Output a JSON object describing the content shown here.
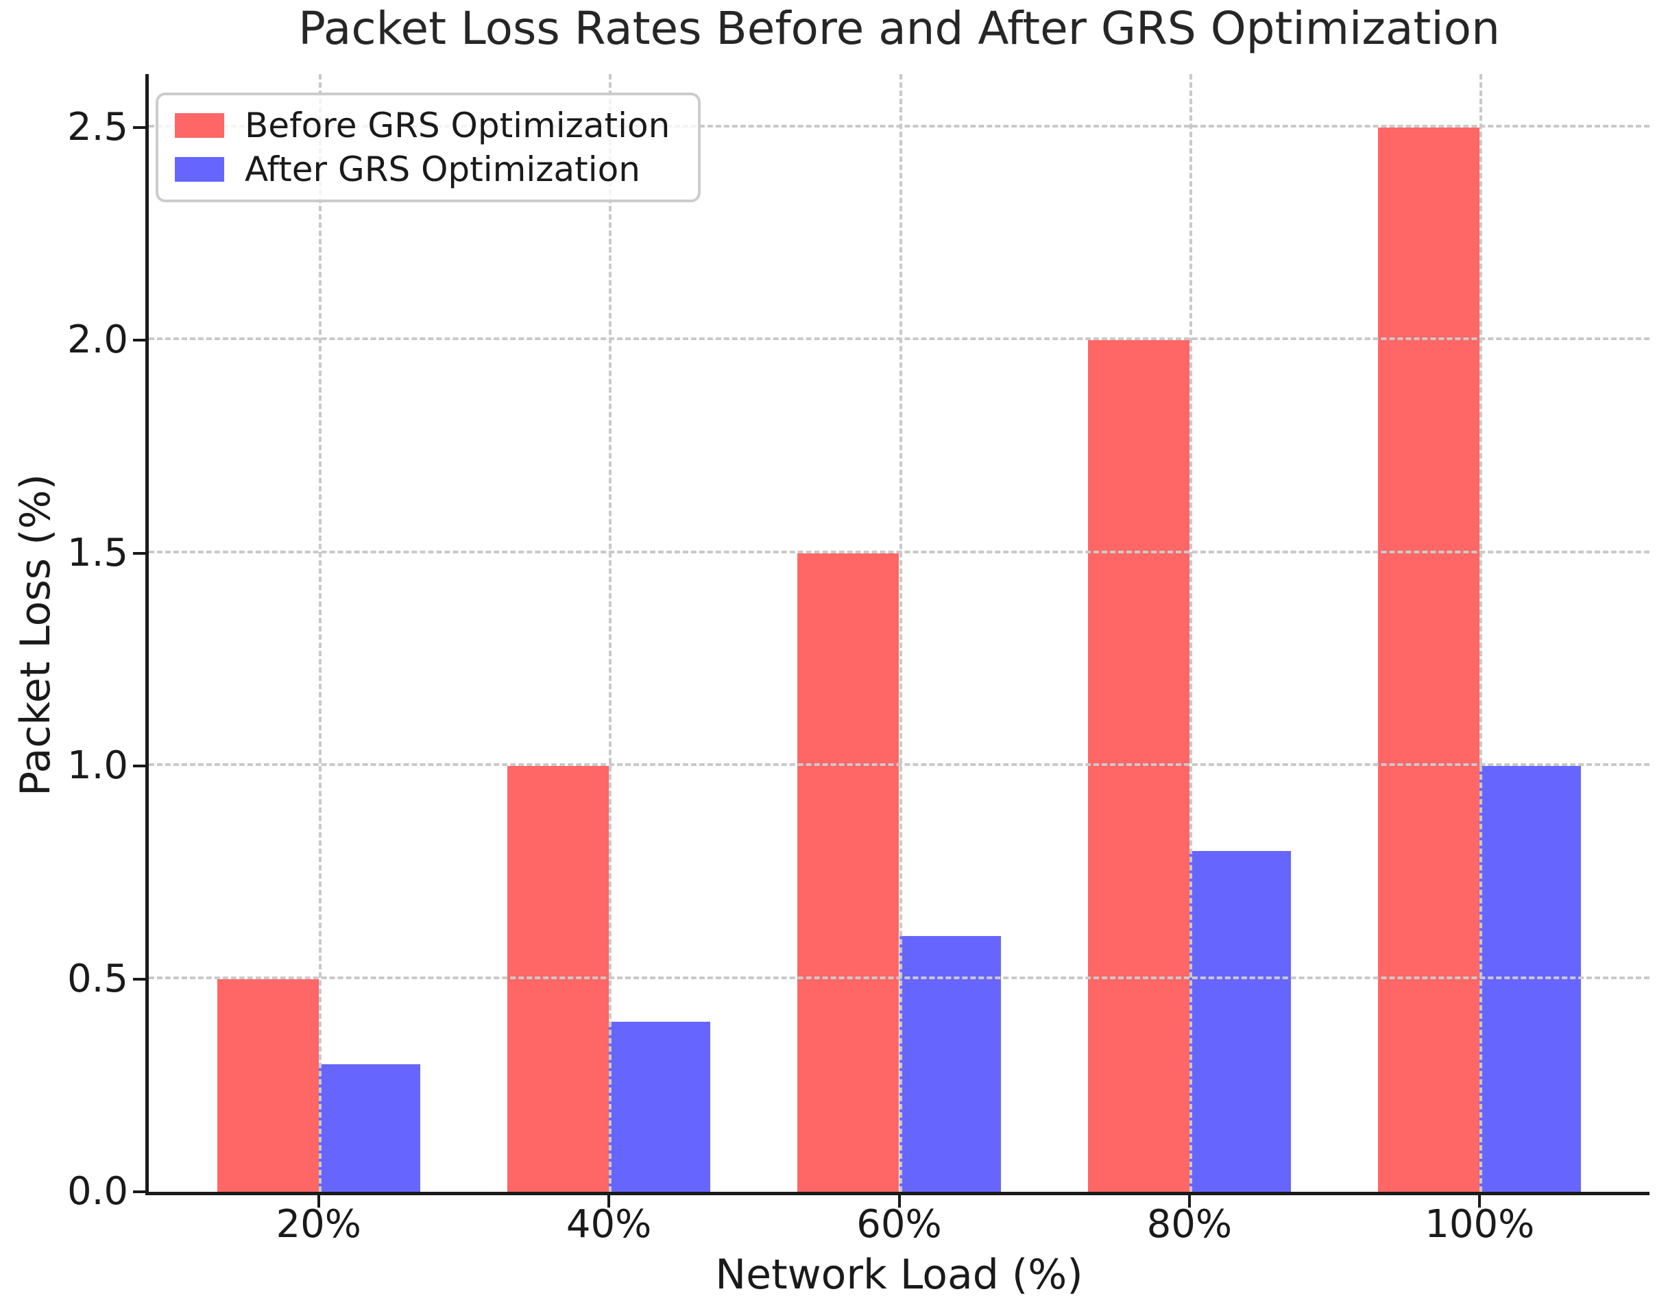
{
  "title": "Packet Loss Rates Before and After GRS Optimization",
  "axes": {
    "xlabel": "Network Load (%)",
    "ylabel": "Packet Loss (%)"
  },
  "legend": {
    "items": [
      {
        "label": "Before GRS Optimization",
        "color": "#FF6666"
      },
      {
        "label": "After GRS Optimization",
        "color": "#6666FF"
      }
    ],
    "position": "upper left"
  },
  "colors": {
    "bar_before": "#FF6666",
    "bar_after": "#6666FF",
    "grid": "#c9c9c9",
    "spine": "#1a1a1a",
    "text": "#1a1a1a"
  },
  "chart_data": {
    "type": "bar",
    "categories": [
      "20%",
      "40%",
      "60%",
      "80%",
      "100%"
    ],
    "series": [
      {
        "name": "Before GRS Optimization",
        "color": "#FF6666",
        "values": [
          0.5,
          1.0,
          1.5,
          2.0,
          2.5
        ]
      },
      {
        "name": "After GRS Optimization",
        "color": "#6666FF",
        "values": [
          0.3,
          0.4,
          0.6,
          0.8,
          1.0
        ]
      }
    ],
    "title": "Packet Loss Rates Before and After GRS Optimization",
    "xlabel": "Network Load (%)",
    "ylabel": "Packet Loss (%)",
    "ylim": [
      0,
      2.625
    ],
    "yticks": [
      0.0,
      0.5,
      1.0,
      1.5,
      2.0,
      2.5
    ],
    "ytick_labels": [
      "0.0",
      "0.5",
      "1.0",
      "1.5",
      "2.0",
      "2.5"
    ],
    "grid": "dashed, drawn above bars",
    "legend_position": "upper left",
    "bar_width_units": 0.35,
    "x_axis_span_units": 5.17,
    "x_axis_left_offset_units": 0.585
  }
}
